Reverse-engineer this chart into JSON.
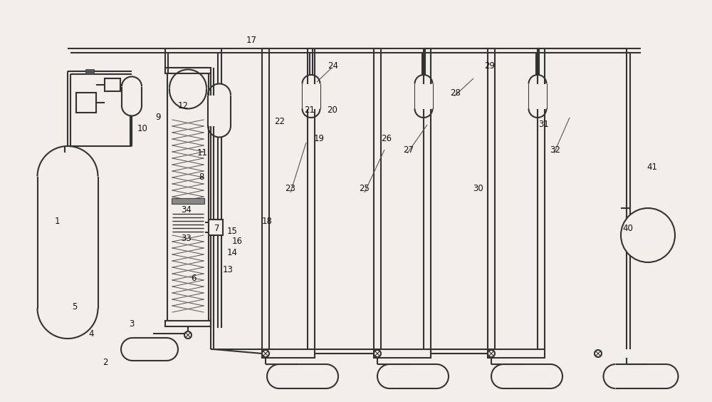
{
  "bg_color": "#f2eeea",
  "line_color": "#333333",
  "fill_color": "#f2eeea",
  "lw": 1.5,
  "lw_thick": 2.2,
  "labels": [
    [
      "1",
      80,
      310
    ],
    [
      "2",
      148,
      508
    ],
    [
      "3",
      185,
      455
    ],
    [
      "4",
      128,
      468
    ],
    [
      "5",
      105,
      430
    ],
    [
      "6",
      272,
      390
    ],
    [
      "7",
      305,
      320
    ],
    [
      "8",
      283,
      248
    ],
    [
      "9",
      222,
      165
    ],
    [
      "10",
      200,
      180
    ],
    [
      "11",
      284,
      215
    ],
    [
      "12",
      257,
      148
    ],
    [
      "13",
      320,
      378
    ],
    [
      "14",
      326,
      355
    ],
    [
      "15",
      326,
      325
    ],
    [
      "16",
      333,
      338
    ],
    [
      "17",
      353,
      57
    ],
    [
      "18",
      375,
      310
    ],
    [
      "19",
      448,
      195
    ],
    [
      "20",
      467,
      155
    ],
    [
      "21",
      435,
      155
    ],
    [
      "22",
      393,
      170
    ],
    [
      "23",
      408,
      265
    ],
    [
      "24",
      468,
      92
    ],
    [
      "25",
      512,
      265
    ],
    [
      "26",
      543,
      195
    ],
    [
      "27",
      574,
      210
    ],
    [
      "28",
      640,
      130
    ],
    [
      "29",
      688,
      92
    ],
    [
      "30",
      672,
      265
    ],
    [
      "31",
      764,
      175
    ],
    [
      "32",
      780,
      210
    ],
    [
      "33",
      262,
      335
    ],
    [
      "34",
      262,
      295
    ],
    [
      "40",
      882,
      320
    ],
    [
      "41",
      916,
      235
    ]
  ]
}
